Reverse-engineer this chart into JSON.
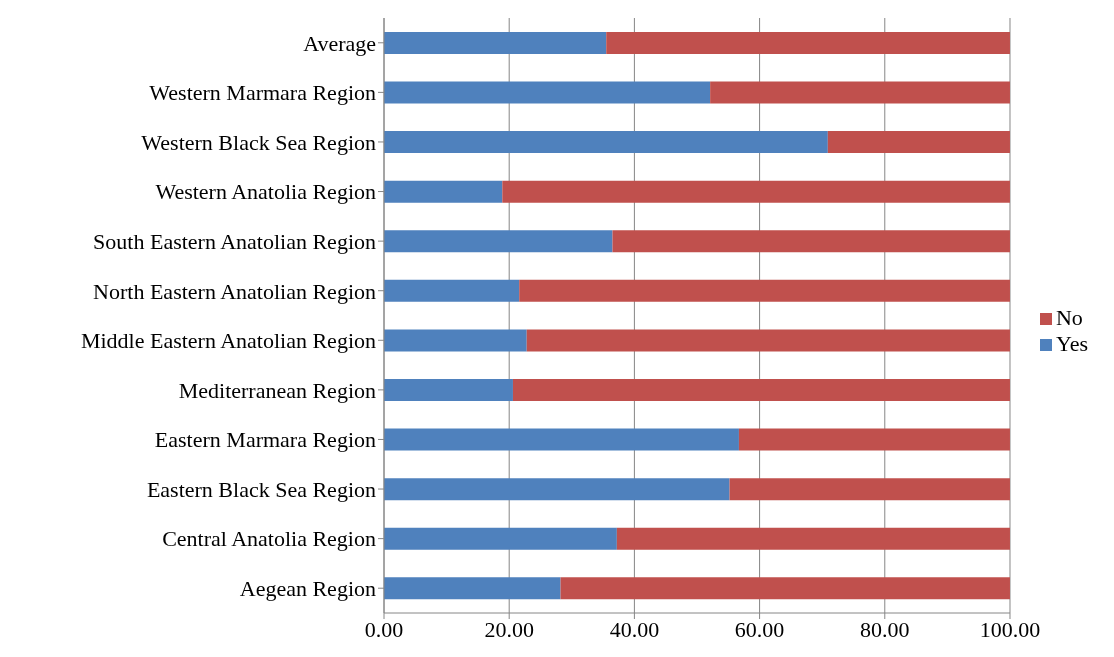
{
  "chart_data": {
    "type": "bar",
    "orientation": "horizontal",
    "stacked": true,
    "categories": [
      "Average",
      "Western Marmara Region",
      "Western Black Sea Region",
      "Western Anatolia Region",
      "South Eastern Anatolian Region",
      "North Eastern Anatolian Region",
      "Middle Eastern Anatolian Region",
      "Mediterranean Region",
      "Eastern Marmara Region",
      "Eastern Black Sea Region",
      "Central Anatolia Region",
      "Aegean Region"
    ],
    "series": [
      {
        "name": "Yes",
        "color": "#4f81bd",
        "values": [
          35.5,
          52.1,
          70.9,
          18.9,
          36.5,
          21.6,
          22.8,
          20.6,
          56.7,
          55.2,
          37.2,
          28.2
        ]
      },
      {
        "name": "No",
        "color": "#c0504d",
        "values": [
          64.5,
          47.9,
          29.1,
          81.1,
          63.5,
          78.4,
          77.2,
          79.4,
          43.3,
          44.8,
          62.8,
          71.8
        ]
      }
    ],
    "xlim": [
      0,
      100
    ],
    "xticks": [
      {
        "value": 0,
        "label": "0.00"
      },
      {
        "value": 20,
        "label": "20.00"
      },
      {
        "value": 40,
        "label": "40.00"
      },
      {
        "value": 60,
        "label": "60.00"
      },
      {
        "value": 80,
        "label": "80.00"
      },
      {
        "value": 100,
        "label": "100.00"
      }
    ],
    "grid": "x",
    "legend": "right"
  }
}
